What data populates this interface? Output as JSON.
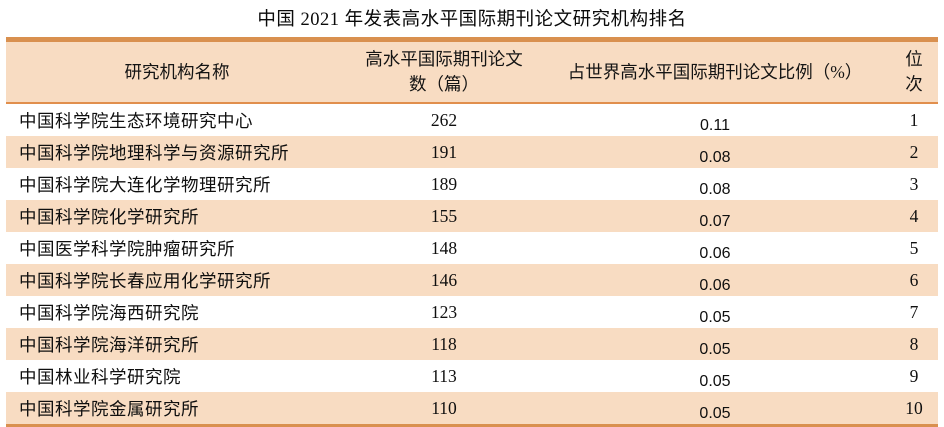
{
  "page": {
    "title": "中国 2021 年发表高水平国际期刊论文研究机构排名"
  },
  "table": {
    "headers": {
      "institution": "研究机构名称",
      "papers_line1": "高水平国际期刊论文",
      "papers_line2": "数（篇）",
      "share": "占世界高水平国际期刊论文比例（%）",
      "rank_line1": "位",
      "rank_line2": "次"
    },
    "rows": [
      {
        "institution": "中国科学院生态环境研究中心",
        "papers": "262",
        "share": "0.11",
        "rank": "1"
      },
      {
        "institution": "中国科学院地理科学与资源研究所",
        "papers": "191",
        "share": "0.08",
        "rank": "2"
      },
      {
        "institution": "中国科学院大连化学物理研究所",
        "papers": "189",
        "share": "0.08",
        "rank": "3"
      },
      {
        "institution": "中国科学院化学研究所",
        "papers": "155",
        "share": "0.07",
        "rank": "4"
      },
      {
        "institution": "中国医学科学院肿瘤研究所",
        "papers": "148",
        "share": "0.06",
        "rank": "5"
      },
      {
        "institution": "中国科学院长春应用化学研究所",
        "papers": "146",
        "share": "0.06",
        "rank": "6"
      },
      {
        "institution": "中国科学院海西研究院",
        "papers": "123",
        "share": "0.05",
        "rank": "7"
      },
      {
        "institution": "中国科学院海洋研究所",
        "papers": "118",
        "share": "0.05",
        "rank": "8"
      },
      {
        "institution": "中国林业科学研究院",
        "papers": "113",
        "share": "0.05",
        "rank": "9"
      },
      {
        "institution": "中国科学院金属研究所",
        "papers": "110",
        "share": "0.05",
        "rank": "10"
      }
    ],
    "colors": {
      "stripe_peach": "#F8DCC2",
      "border_orange": "#D9904F",
      "header_rule_orange": "#E18F4D",
      "text": "#0f0f0f"
    }
  }
}
